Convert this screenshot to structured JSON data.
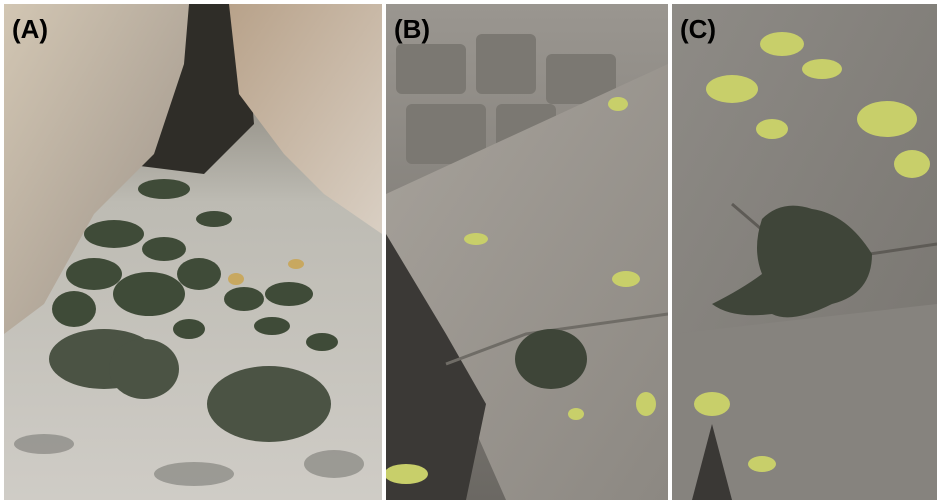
{
  "panels": [
    {
      "label": "(A)"
    },
    {
      "label": "(B)"
    },
    {
      "label": "(C)"
    }
  ],
  "colors": {
    "background": "#ffffff",
    "rock_grey": "#8f8c88",
    "rock_light": "#c9c5bf",
    "rock_tan": "#b9a58d",
    "lichen_dark": "#3c4637",
    "lichen_yellow": "#c8cf6a",
    "shadow": "#2a2a28"
  }
}
